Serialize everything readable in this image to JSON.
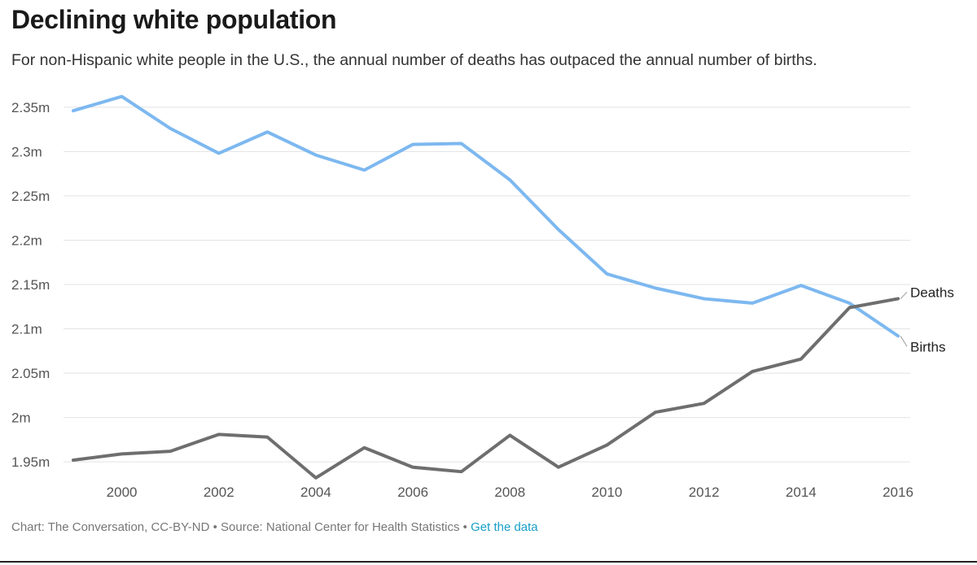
{
  "header": {
    "title": "Declining white population",
    "subtitle": "For non-Hispanic white people in the U.S., the annual number of deaths has outpaced the annual number of births."
  },
  "footer": {
    "credit": "Chart: The Conversation, CC-BY-ND",
    "separator1": " • ",
    "source": "Source: National Center for Health Statistics",
    "separator2": " • ",
    "link": "Get the data"
  },
  "chart_data": {
    "type": "line",
    "title": "Declining white population",
    "subtitle": "For non-Hispanic white people in the U.S., the annual number of deaths has outpaced the annual number of births.",
    "x": [
      1999,
      2000,
      2001,
      2002,
      2003,
      2004,
      2005,
      2006,
      2007,
      2008,
      2009,
      2010,
      2011,
      2012,
      2013,
      2014,
      2015,
      2016
    ],
    "xlim": [
      1999,
      2016
    ],
    "ylim": [
      1.93,
      2.37
    ],
    "x_ticks": [
      2000,
      2002,
      2004,
      2006,
      2008,
      2010,
      2012,
      2014,
      2016
    ],
    "x_tick_labels": [
      "2000",
      "2002",
      "2004",
      "2006",
      "2008",
      "2010",
      "2012",
      "2014",
      "2016"
    ],
    "y_ticks": [
      1.95,
      2.0,
      2.05,
      2.1,
      2.15,
      2.2,
      2.25,
      2.3,
      2.35
    ],
    "y_tick_labels": [
      "1.95m",
      "2m",
      "2.05m",
      "2.1m",
      "2.15m",
      "2.2m",
      "2.25m",
      "2.3m",
      "2.35m"
    ],
    "grid": "horizontal",
    "legend": "line-end labels",
    "series": [
      {
        "name": "Births",
        "color": "#7db8f0",
        "values": [
          2.346,
          2.362,
          2.326,
          2.298,
          2.322,
          2.296,
          2.279,
          2.308,
          2.309,
          2.268,
          2.212,
          2.162,
          2.146,
          2.134,
          2.129,
          2.149,
          2.129,
          2.092
        ]
      },
      {
        "name": "Deaths",
        "color": "#6e6e6e",
        "values": [
          1.952,
          1.959,
          1.962,
          1.981,
          1.978,
          1.932,
          1.966,
          1.944,
          1.939,
          1.98,
          1.944,
          1.969,
          2.006,
          2.016,
          2.052,
          2.066,
          2.124,
          2.134
        ]
      }
    ]
  }
}
